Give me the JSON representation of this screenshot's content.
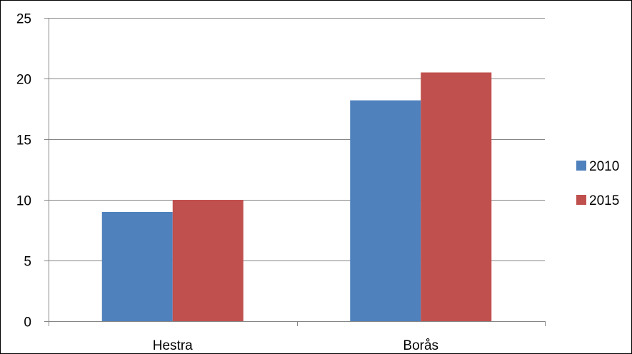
{
  "chart_data": {
    "type": "bar",
    "categories": [
      "Hestra",
      "Borås"
    ],
    "series": [
      {
        "name": "2010",
        "values": [
          9,
          18.2
        ],
        "color": "#4F81BD"
      },
      {
        "name": "2015",
        "values": [
          10,
          20.5
        ],
        "color": "#C0504D"
      }
    ],
    "ylim": [
      0,
      25
    ],
    "yticks": [
      0,
      5,
      10,
      15,
      20,
      25
    ],
    "grid": true,
    "legend": "right"
  }
}
